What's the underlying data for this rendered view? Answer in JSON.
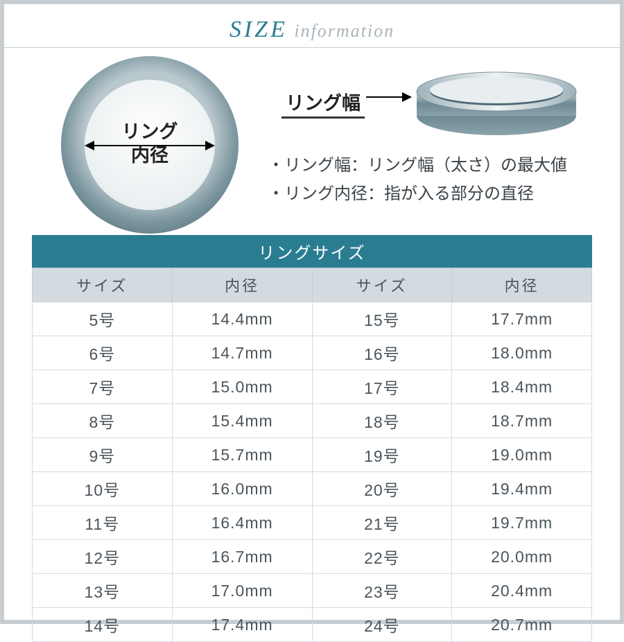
{
  "header": {
    "title_big": "SIZE",
    "title_small": "information"
  },
  "diagram": {
    "inner_label_line1": "リング",
    "inner_label_line2": "内径",
    "width_label": "リング幅",
    "bullet1": "リング幅：リング幅（太さ）の最大値",
    "bullet2": "リング内径：指が入る部分の直径",
    "ring_outer_color": "#8fa8b0",
    "ring_inner_color": "#f3f5f6",
    "ring_outer_r": 130,
    "ring_inner_r": 94,
    "side_ring_color_top": "#d8e1e4",
    "side_ring_color_mid": "#6d8a94",
    "side_ring_color_dark": "#45626c"
  },
  "table": {
    "title": "リングサイズ",
    "headers": [
      "サイズ",
      "内径",
      "サイズ",
      "内径"
    ],
    "rows": [
      [
        "5号",
        "14.4mm",
        "15号",
        "17.7mm"
      ],
      [
        "6号",
        "14.7mm",
        "16号",
        "18.0mm"
      ],
      [
        "7号",
        "15.0mm",
        "17号",
        "18.4mm"
      ],
      [
        "8号",
        "15.4mm",
        "18号",
        "18.7mm"
      ],
      [
        "9号",
        "15.7mm",
        "19号",
        "19.0mm"
      ],
      [
        "10号",
        "16.0mm",
        "20号",
        "19.4mm"
      ],
      [
        "11号",
        "16.4mm",
        "21号",
        "19.7mm"
      ],
      [
        "12号",
        "16.7mm",
        "22号",
        "20.0mm"
      ],
      [
        "13号",
        "17.0mm",
        "23号",
        "20.4mm"
      ],
      [
        "14号",
        "17.4mm",
        "24号",
        "20.7mm"
      ]
    ],
    "title_bg": "#2a7d91",
    "header_bg": "#d4dbe0",
    "border_color": "#d4dbe0",
    "text_color": "#4a545b"
  }
}
